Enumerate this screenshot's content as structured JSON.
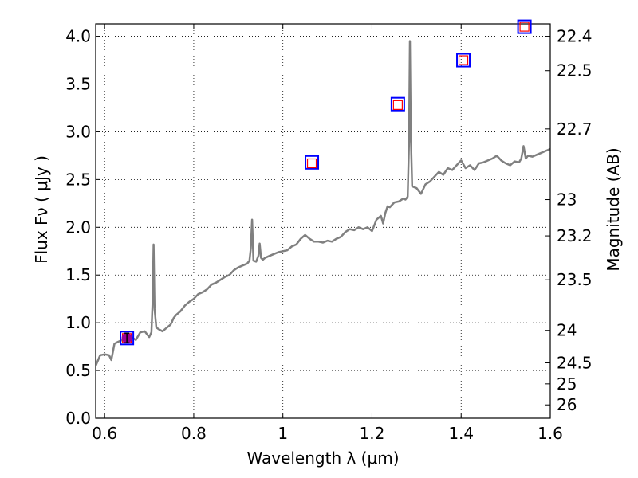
{
  "chart_data": {
    "type": "line",
    "xlabel": "Wavelength  λ (μm)",
    "ylabel": "Flux  Fν  ( μJy )",
    "ylabel_right": "Magnitude (AB)",
    "xlim": [
      0.58,
      1.6
    ],
    "ylim": [
      0.0,
      4.13
    ],
    "grid": true,
    "x_ticks": [
      0.6,
      0.8,
      1.0,
      1.2,
      1.4,
      1.6
    ],
    "x_tick_labels": [
      "0.6",
      "0.8",
      "1",
      "1.2",
      "1.4",
      "1.6"
    ],
    "y_ticks": [
      0.0,
      0.5,
      1.0,
      1.5,
      2.0,
      2.5,
      3.0,
      3.5,
      4.0
    ],
    "y_tick_labels": [
      "0.0",
      "0.5",
      "1.0",
      "1.5",
      "2.0",
      "2.5",
      "3.0",
      "3.5",
      "4.0"
    ],
    "right_ticks": [
      {
        "label": "22.4",
        "flux": 4.0
      },
      {
        "label": "22.5",
        "flux": 3.64
      },
      {
        "label": "22.7",
        "flux": 3.03
      },
      {
        "label": "23",
        "flux": 2.29
      },
      {
        "label": "23.2",
        "flux": 1.91
      },
      {
        "label": "23.5",
        "flux": 1.45
      },
      {
        "label": "24",
        "flux": 0.92
      },
      {
        "label": "24.5",
        "flux": 0.58
      },
      {
        "label": "25",
        "flux": 0.36
      },
      {
        "label": "26",
        "flux": 0.14
      }
    ],
    "series": [
      {
        "kind": "spectrum",
        "color": "#808080",
        "x": [
          0.58,
          0.59,
          0.6,
          0.61,
          0.615,
          0.622,
          0.63,
          0.64,
          0.65,
          0.66,
          0.67,
          0.68,
          0.69,
          0.7,
          0.705,
          0.708,
          0.71,
          0.712,
          0.716,
          0.722,
          0.73,
          0.74,
          0.748,
          0.755,
          0.76,
          0.77,
          0.78,
          0.79,
          0.8,
          0.81,
          0.82,
          0.83,
          0.84,
          0.85,
          0.86,
          0.87,
          0.88,
          0.89,
          0.9,
          0.91,
          0.92,
          0.925,
          0.928,
          0.931,
          0.934,
          0.94,
          0.945,
          0.948,
          0.951,
          0.955,
          0.96,
          0.97,
          0.98,
          0.99,
          1.0,
          1.01,
          1.02,
          1.03,
          1.04,
          1.05,
          1.06,
          1.07,
          1.08,
          1.09,
          1.1,
          1.11,
          1.12,
          1.13,
          1.14,
          1.15,
          1.16,
          1.17,
          1.18,
          1.19,
          1.2,
          1.21,
          1.22,
          1.225,
          1.23,
          1.235,
          1.24,
          1.25,
          1.26,
          1.27,
          1.275,
          1.28,
          1.283,
          1.285,
          1.287,
          1.29,
          1.3,
          1.31,
          1.32,
          1.33,
          1.34,
          1.35,
          1.36,
          1.37,
          1.38,
          1.39,
          1.4,
          1.41,
          1.42,
          1.43,
          1.44,
          1.45,
          1.46,
          1.47,
          1.48,
          1.49,
          1.5,
          1.51,
          1.52,
          1.53,
          1.535,
          1.54,
          1.545,
          1.55,
          1.56,
          1.57,
          1.58,
          1.59,
          1.6
        ],
        "y": [
          0.55,
          0.66,
          0.67,
          0.66,
          0.61,
          0.78,
          0.8,
          0.82,
          0.82,
          0.85,
          0.82,
          0.9,
          0.91,
          0.85,
          0.9,
          1.25,
          1.82,
          1.15,
          0.95,
          0.93,
          0.91,
          0.95,
          0.98,
          1.05,
          1.08,
          1.12,
          1.18,
          1.22,
          1.25,
          1.3,
          1.32,
          1.35,
          1.4,
          1.42,
          1.45,
          1.48,
          1.5,
          1.55,
          1.58,
          1.6,
          1.62,
          1.65,
          1.78,
          2.08,
          1.65,
          1.64,
          1.7,
          1.83,
          1.68,
          1.66,
          1.68,
          1.7,
          1.72,
          1.74,
          1.75,
          1.76,
          1.8,
          1.82,
          1.88,
          1.92,
          1.88,
          1.85,
          1.85,
          1.84,
          1.86,
          1.85,
          1.88,
          1.9,
          1.95,
          1.98,
          1.97,
          2.0,
          1.98,
          2.0,
          1.96,
          2.08,
          2.12,
          2.04,
          2.15,
          2.22,
          2.21,
          2.26,
          2.27,
          2.3,
          2.29,
          2.32,
          2.9,
          3.95,
          3.0,
          2.43,
          2.41,
          2.35,
          2.45,
          2.48,
          2.53,
          2.58,
          2.55,
          2.62,
          2.6,
          2.65,
          2.7,
          2.62,
          2.65,
          2.6,
          2.67,
          2.68,
          2.7,
          2.72,
          2.75,
          2.7,
          2.67,
          2.65,
          2.69,
          2.68,
          2.72,
          2.85,
          2.72,
          2.75,
          2.74,
          2.76,
          2.78,
          2.8,
          2.82
        ]
      },
      {
        "kind": "photometry",
        "marker": "square",
        "color": "#0000ff",
        "x": [
          0.65,
          1.065,
          1.258,
          1.405,
          1.542
        ],
        "y": [
          0.84,
          2.68,
          3.29,
          3.75,
          4.1
        ]
      },
      {
        "kind": "model-photometry",
        "marker": "square",
        "color": "#ff0000",
        "x": [
          0.65,
          1.065,
          1.258,
          1.405,
          1.542
        ],
        "y": [
          0.84,
          2.67,
          3.28,
          3.75,
          4.1
        ]
      },
      {
        "kind": "measured-point",
        "marker": "circle",
        "color": "#9b009b",
        "x": [
          0.65
        ],
        "y": [
          0.84
        ],
        "yerr": [
          0.05
        ]
      }
    ]
  }
}
